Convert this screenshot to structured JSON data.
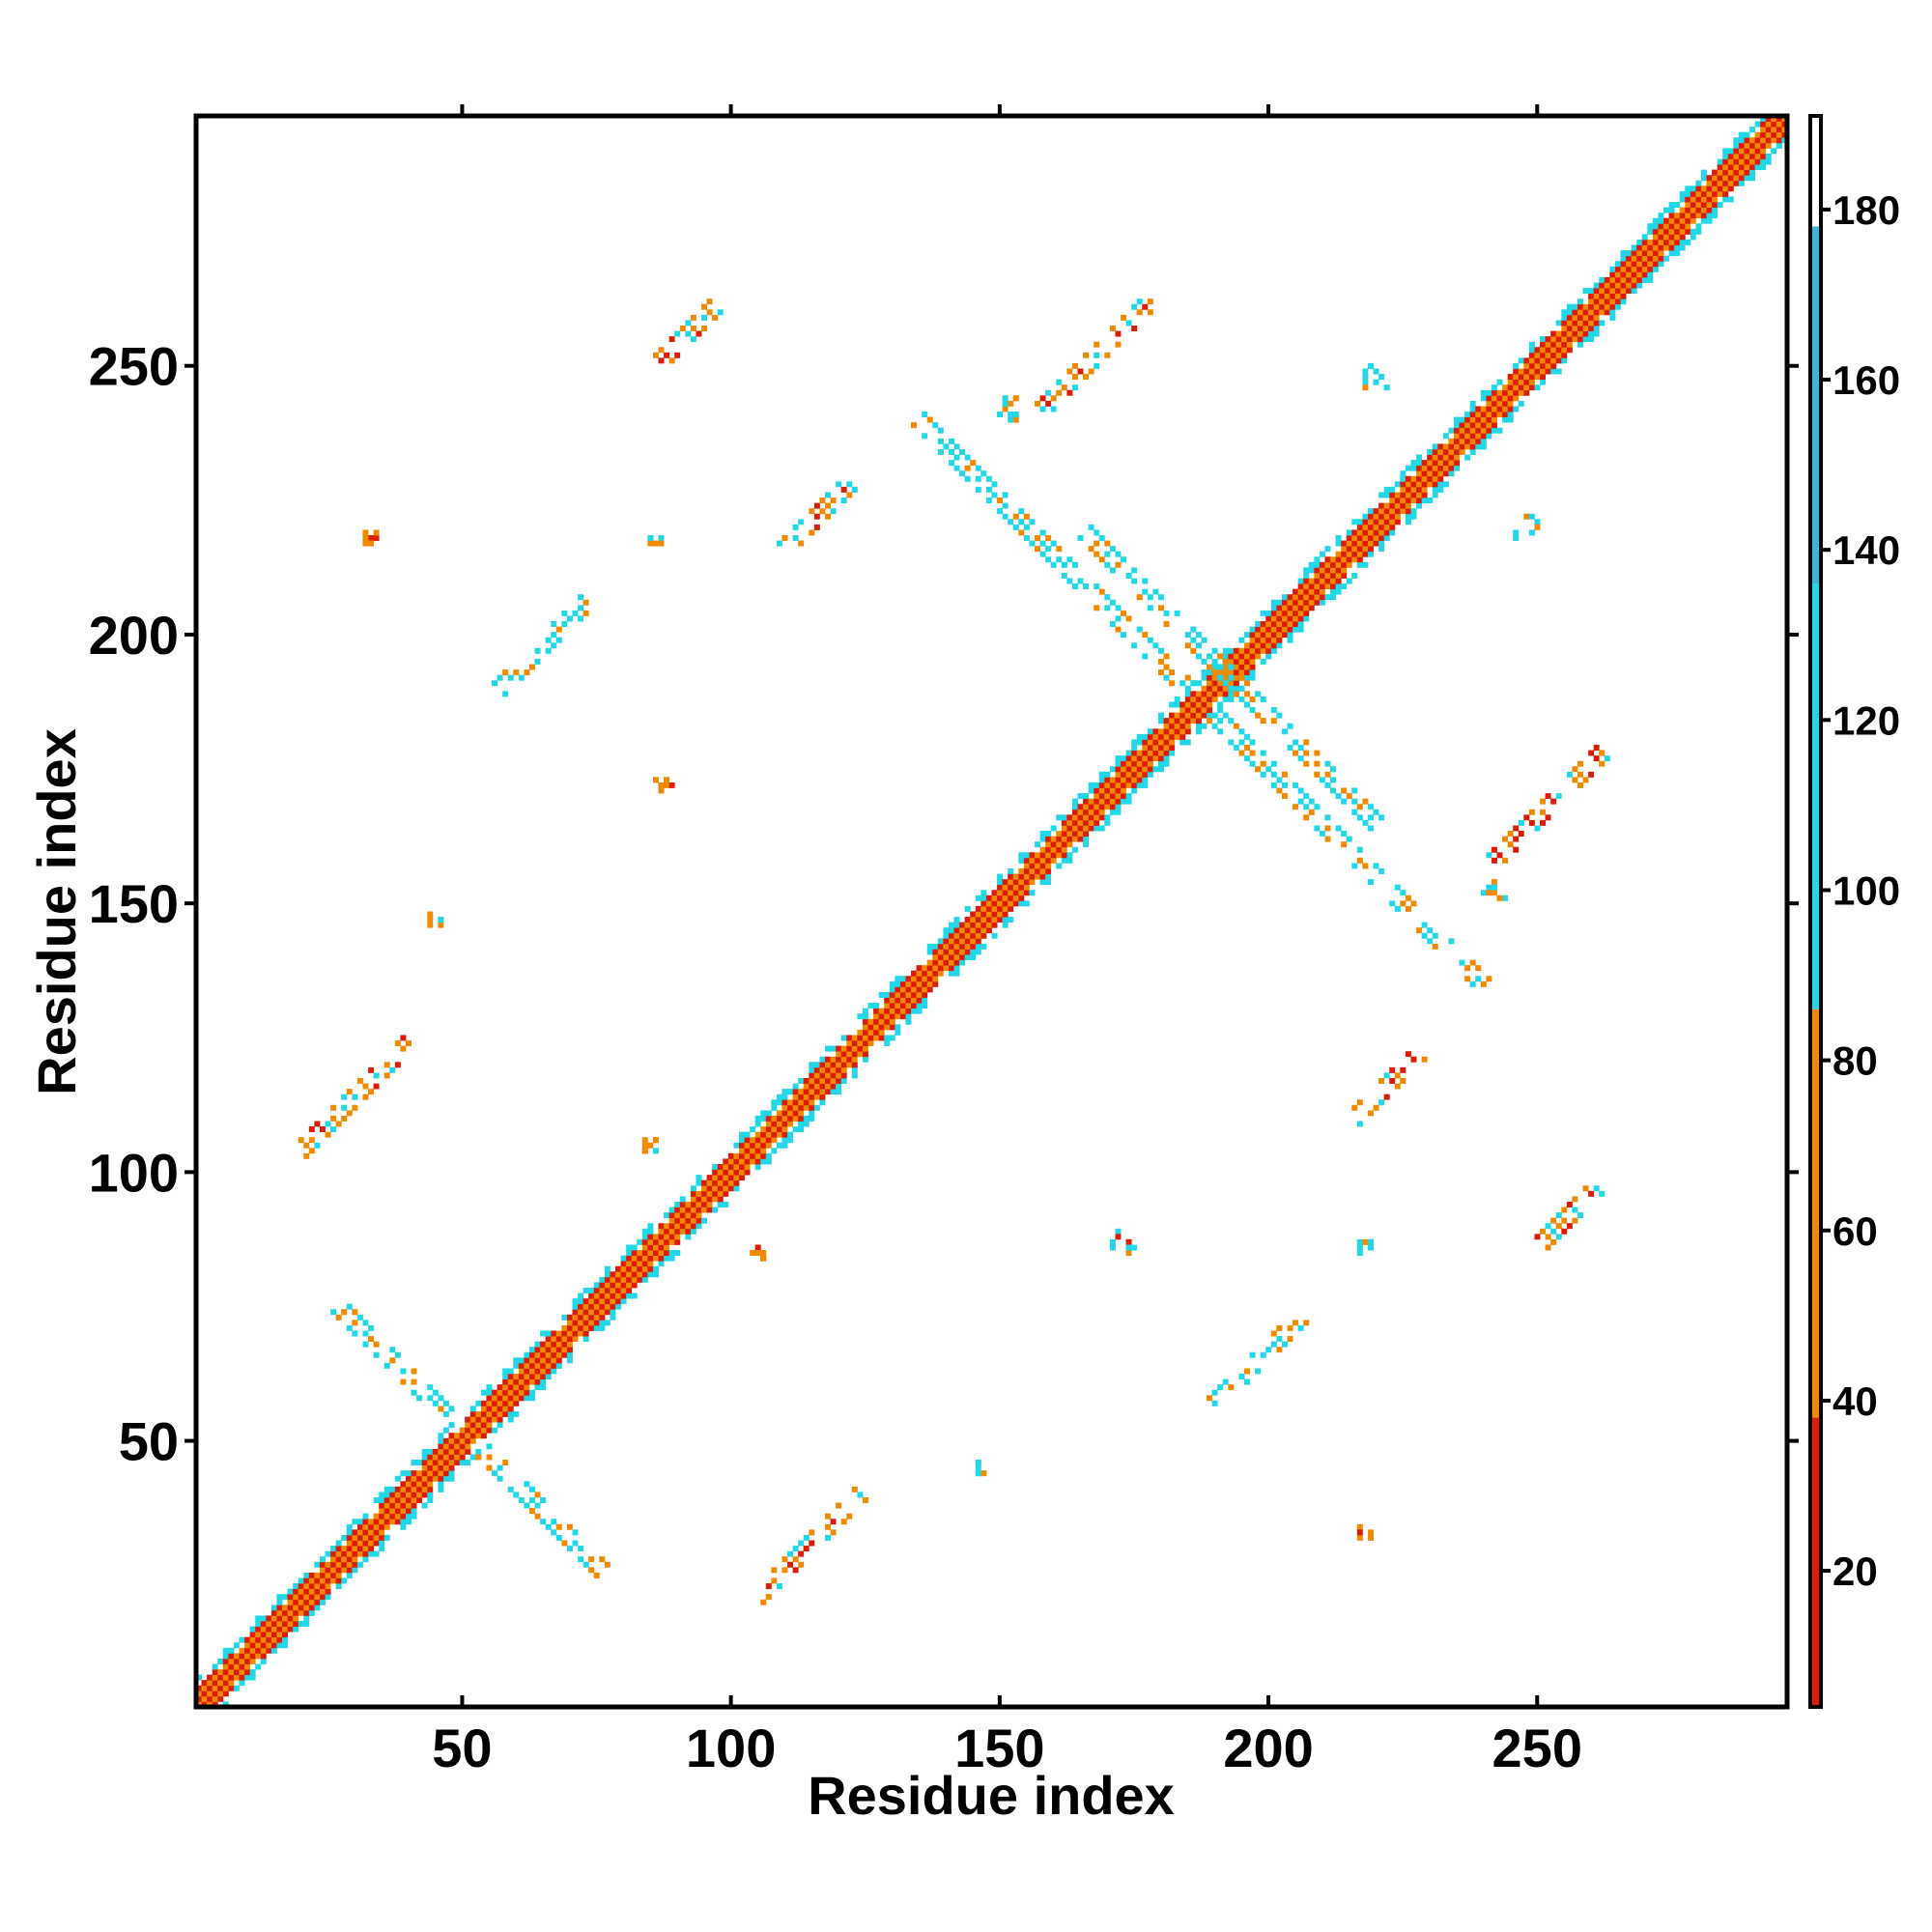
{
  "chart_data": {
    "type": "heatmap",
    "title": "",
    "xlabel": "Residue index",
    "ylabel": "Residue index",
    "xlim": [
      1,
      296
    ],
    "ylim": [
      1,
      296
    ],
    "xticks": [
      50,
      100,
      150,
      200,
      250
    ],
    "yticks": [
      50,
      100,
      150,
      200,
      250
    ],
    "colorbar": {
      "range": [
        4,
        191
      ],
      "ticks": [
        20,
        40,
        60,
        80,
        100,
        120,
        140,
        160,
        180
      ],
      "segments": [
        {
          "from": 4,
          "to": 38,
          "color": "#dd1c07"
        },
        {
          "from": 38,
          "to": 86,
          "color": "#f28a00"
        },
        {
          "from": 86,
          "to": 136,
          "color": "#22d8e8"
        },
        {
          "from": 136,
          "to": 178,
          "color": "#3ab6d8"
        },
        {
          "from": 178,
          "to": 191,
          "color": "#ffffff"
        }
      ]
    },
    "value_categories": [
      {
        "range": "<38",
        "color": "#dd1c07"
      },
      {
        "range": "38-86",
        "color": "#f28a00"
      },
      {
        "range": "86-136",
        "color": "#22d8e8"
      },
      {
        "range": "136-178",
        "color": "#3ab6d8"
      }
    ],
    "diagonal_band": {
      "from": 1,
      "to": 296
    },
    "contact_clusters": [
      {
        "x": 30,
        "y": 114,
        "orientation": "parallel",
        "length": 20,
        "palette": "red-orange"
      },
      {
        "x": 114,
        "y": 30,
        "orientation": "parallel",
        "length": 20,
        "palette": "red-orange"
      },
      {
        "x": 92,
        "y": 256,
        "orientation": "parallel",
        "length": 10,
        "palette": "red-orange"
      },
      {
        "x": 256,
        "y": 92,
        "orientation": "parallel",
        "length": 10,
        "palette": "red-orange"
      },
      {
        "x": 116,
        "y": 222,
        "orientation": "parallel",
        "length": 12,
        "palette": "red-orange"
      },
      {
        "x": 222,
        "y": 116,
        "orientation": "parallel",
        "length": 12,
        "palette": "red-orange"
      },
      {
        "x": 168,
        "y": 252,
        "orientation": "parallel",
        "length": 20,
        "palette": "red-orange"
      },
      {
        "x": 252,
        "y": 168,
        "orientation": "parallel",
        "length": 20,
        "palette": "red-orange"
      },
      {
        "x": 65,
        "y": 198,
        "orientation": "parallel",
        "length": 16,
        "palette": "cyan"
      },
      {
        "x": 198,
        "y": 65,
        "orientation": "parallel",
        "length": 16,
        "palette": "cyan"
      },
      {
        "x": 37,
        "y": 65,
        "orientation": "anti",
        "length": 22,
        "palette": "cyan"
      },
      {
        "x": 65,
        "y": 37,
        "orientation": "anti",
        "length": 22,
        "palette": "cyan"
      },
      {
        "x": 180,
        "y": 205,
        "orientation": "anti",
        "length": 30,
        "palette": "cyan"
      },
      {
        "x": 205,
        "y": 180,
        "orientation": "anti",
        "length": 30,
        "palette": "cyan"
      },
      {
        "x": 215,
        "y": 160,
        "orientation": "anti",
        "length": 50,
        "palette": "cyan"
      },
      {
        "x": 160,
        "y": 215,
        "orientation": "anti",
        "length": 50,
        "palette": "cyan"
      },
      {
        "x": 86,
        "y": 218,
        "orientation": "spot",
        "length": 3,
        "palette": "cyan"
      },
      {
        "x": 218,
        "y": 86,
        "orientation": "spot",
        "length": 3,
        "palette": "cyan"
      },
      {
        "x": 87,
        "y": 173,
        "orientation": "spot",
        "length": 4,
        "palette": "red-orange"
      },
      {
        "x": 173,
        "y": 87,
        "orientation": "spot",
        "length": 4,
        "palette": "red-orange"
      },
      {
        "x": 33,
        "y": 218,
        "orientation": "spot",
        "length": 3,
        "palette": "red-orange"
      },
      {
        "x": 218,
        "y": 33,
        "orientation": "spot",
        "length": 3,
        "palette": "red-orange"
      },
      {
        "x": 45,
        "y": 147,
        "orientation": "spot",
        "length": 3,
        "palette": "cyan"
      },
      {
        "x": 147,
        "y": 45,
        "orientation": "spot",
        "length": 3,
        "palette": "cyan"
      },
      {
        "x": 152,
        "y": 242,
        "orientation": "spot",
        "length": 4,
        "palette": "cyan"
      },
      {
        "x": 242,
        "y": 152,
        "orientation": "spot",
        "length": 4,
        "palette": "cyan"
      },
      {
        "x": 220,
        "y": 248,
        "orientation": "spot",
        "length": 4,
        "palette": "cyan"
      },
      {
        "x": 248,
        "y": 220,
        "orientation": "spot",
        "length": 4,
        "palette": "cyan"
      },
      {
        "x": 105,
        "y": 85,
        "orientation": "spot",
        "length": 3,
        "palette": "red-orange"
      },
      {
        "x": 85,
        "y": 105,
        "orientation": "spot",
        "length": 3,
        "palette": "red-orange"
      }
    ]
  }
}
